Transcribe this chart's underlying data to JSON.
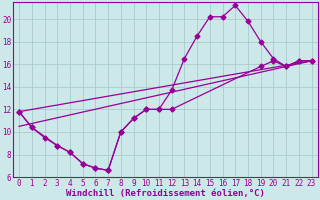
{
  "background_color": "#cce8e8",
  "grid_color": "#aacccc",
  "line_color": "#990099",
  "marker_color": "#990099",
  "xlabel": "Windchill (Refroidissement éolien,°C)",
  "xlim": [
    -0.5,
    23.5
  ],
  "ylim": [
    6,
    21.5
  ],
  "xticks": [
    0,
    1,
    2,
    3,
    4,
    5,
    6,
    7,
    8,
    9,
    10,
    11,
    12,
    13,
    14,
    15,
    16,
    17,
    18,
    19,
    20,
    21,
    22,
    23
  ],
  "yticks": [
    6,
    8,
    10,
    12,
    14,
    16,
    18,
    20
  ],
  "line1_x": [
    0,
    1,
    2,
    3,
    4,
    5,
    6,
    7,
    8,
    9,
    10,
    11,
    12,
    13,
    14,
    15,
    16,
    17,
    18,
    19,
    20,
    21,
    22,
    23
  ],
  "line1_y": [
    11.8,
    10.4,
    9.5,
    8.8,
    8.2,
    7.2,
    6.8,
    6.6,
    10.0,
    11.2,
    12.0,
    12.0,
    13.7,
    16.5,
    18.5,
    20.2,
    20.2,
    21.2,
    19.8,
    18.0,
    16.5,
    15.8,
    16.3,
    16.3
  ],
  "line2_x": [
    0,
    1,
    3,
    4,
    5,
    6,
    7,
    8,
    9,
    10,
    11,
    12,
    19,
    20,
    21,
    22,
    23
  ],
  "line2_y": [
    11.8,
    10.4,
    8.8,
    8.2,
    7.2,
    6.8,
    6.6,
    10.0,
    11.2,
    12.0,
    12.0,
    12.0,
    15.8,
    16.3,
    15.8,
    16.3,
    16.3
  ],
  "line3_x": [
    0,
    23
  ],
  "line3_y": [
    10.5,
    16.3
  ],
  "line4_x": [
    0,
    23
  ],
  "line4_y": [
    11.8,
    16.3
  ],
  "font_family": "monospace",
  "tick_fontsize": 5.5,
  "label_fontsize": 6.5
}
